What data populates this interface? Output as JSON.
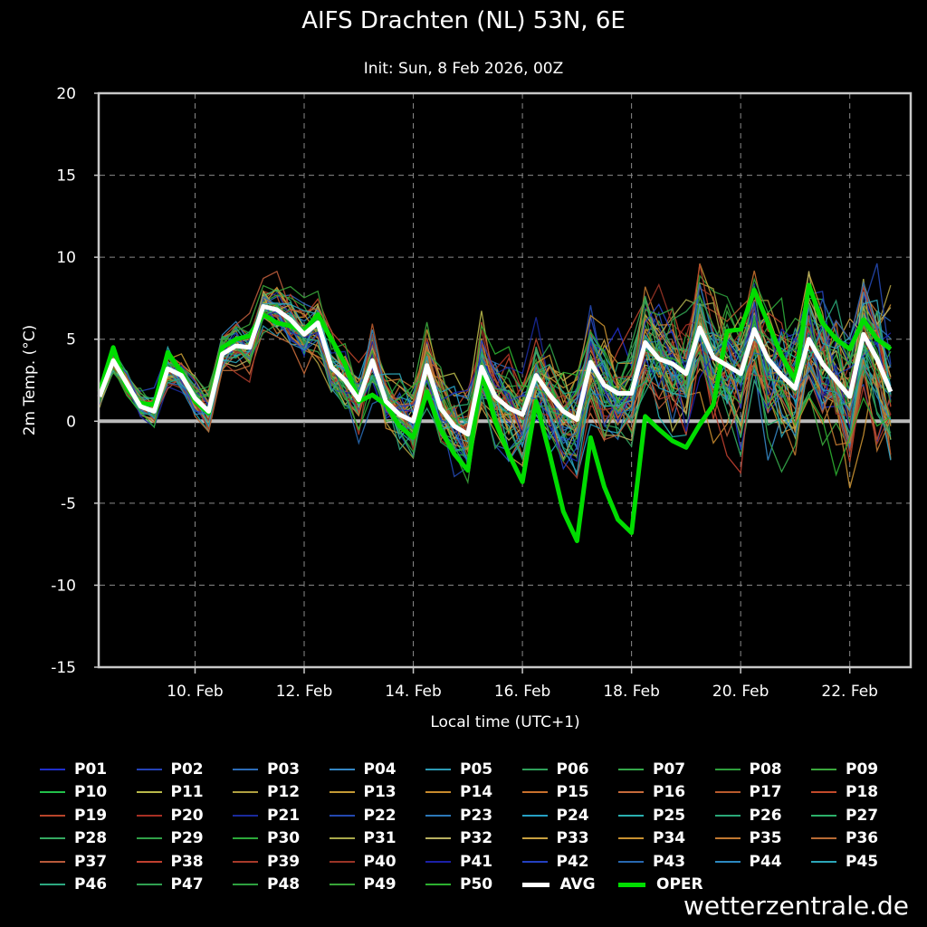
{
  "title": "AIFS Drachten (NL) 53N, 6E",
  "subtitle": "Init: Sun, 8 Feb 2026, 00Z",
  "credit": "wetterzentrale.de",
  "chart_data": {
    "type": "line",
    "xlabel": "Local time (UTC+1)",
    "ylabel": "2m Temp. (°C)",
    "ylim": [
      -15,
      20
    ],
    "yticks": [
      20,
      15,
      10,
      5,
      0,
      -5,
      -10,
      -15
    ],
    "xlim": [
      8.25,
      23.1
    ],
    "xticks": [
      {
        "day": 10,
        "label": "10. Feb"
      },
      {
        "day": 12,
        "label": "12. Feb"
      },
      {
        "day": 14,
        "label": "14. Feb"
      },
      {
        "day": 16,
        "label": "16. Feb"
      },
      {
        "day": 18,
        "label": "18. Feb"
      },
      {
        "day": 20,
        "label": "20. Feb"
      },
      {
        "day": 22,
        "label": "22. Feb"
      }
    ],
    "grid": true,
    "legend_placement": "bottom",
    "zero_line_color": "#bbbbbb",
    "x_start_day": 8.25,
    "x_step_days": 0.25,
    "avg": {
      "name": "AVG",
      "color": "#ffffff",
      "values": [
        1.5,
        3.7,
        2.3,
        0.9,
        0.6,
        3.2,
        2.8,
        1.4,
        0.6,
        4.1,
        4.6,
        4.5,
        7.0,
        6.8,
        6.2,
        5.3,
        6.0,
        3.3,
        2.5,
        1.3,
        3.7,
        1.2,
        0.4,
        0.0,
        3.4,
        0.8,
        -0.3,
        -0.8,
        3.3,
        1.5,
        0.8,
        0.4,
        2.8,
        1.6,
        0.6,
        0.1,
        3.6,
        2.2,
        1.7,
        1.7,
        4.8,
        3.8,
        3.5,
        2.9,
        5.7,
        3.9,
        3.4,
        2.9,
        5.6,
        3.8,
        2.8,
        2.0,
        5.0,
        3.5,
        2.5,
        1.5,
        5.3,
        3.8,
        1.8
      ]
    },
    "oper": {
      "name": "OPER",
      "color": "#00dd00",
      "values": [
        1.8,
        4.5,
        2.0,
        1.1,
        1.0,
        4.2,
        3.0,
        1.2,
        0.5,
        4.5,
        5.0,
        5.2,
        6.5,
        6.0,
        5.8,
        5.5,
        6.5,
        5.0,
        3.5,
        1.2,
        1.6,
        1.0,
        -0.3,
        -1.0,
        1.8,
        -0.5,
        -2.0,
        -3.0,
        3.0,
        0.0,
        -2.0,
        -3.7,
        1.2,
        -2.0,
        -5.5,
        -7.3,
        -1.0,
        -4.0,
        -6.0,
        -6.8,
        0.3,
        -0.5,
        -1.2,
        -1.6,
        -0.2,
        1.0,
        5.5,
        5.6,
        8.0,
        6.0,
        4.0,
        2.5,
        8.3,
        6.0,
        5.0,
        4.4,
        6.2,
        5.0,
        4.4
      ]
    },
    "ensemble": {
      "count": 50,
      "name_prefix": "P",
      "spread_min": -11,
      "spread_max": 14.6
    },
    "legend": [
      {
        "label": "P01",
        "color": "#1f2ecc"
      },
      {
        "label": "P02",
        "color": "#2442b8"
      },
      {
        "label": "P03",
        "color": "#2c6cb8"
      },
      {
        "label": "P04",
        "color": "#3486c4"
      },
      {
        "label": "P05",
        "color": "#2c9ab4"
      },
      {
        "label": "P06",
        "color": "#2fa05a"
      },
      {
        "label": "P07",
        "color": "#34a84a"
      },
      {
        "label": "P08",
        "color": "#2e9f3c"
      },
      {
        "label": "P09",
        "color": "#3aa83c"
      },
      {
        "label": "P10",
        "color": "#22c04a"
      },
      {
        "label": "P11",
        "color": "#b8b84a"
      },
      {
        "label": "P12",
        "color": "#b0a040"
      },
      {
        "label": "P13",
        "color": "#c49a34"
      },
      {
        "label": "P14",
        "color": "#c88a2c"
      },
      {
        "label": "P15",
        "color": "#c8702c"
      },
      {
        "label": "P16",
        "color": "#c66a3a"
      },
      {
        "label": "P17",
        "color": "#b85a2c"
      },
      {
        "label": "P18",
        "color": "#c24a2a"
      },
      {
        "label": "P19",
        "color": "#b8442a"
      },
      {
        "label": "P20",
        "color": "#a83024"
      },
      {
        "label": "P21",
        "color": "#1a2a9c"
      },
      {
        "label": "P22",
        "color": "#2448b0"
      },
      {
        "label": "P23",
        "color": "#2c78b8"
      },
      {
        "label": "P24",
        "color": "#26a0c4"
      },
      {
        "label": "P25",
        "color": "#2ab0b0"
      },
      {
        "label": "P26",
        "color": "#2aa878"
      },
      {
        "label": "P27",
        "color": "#2cb06a"
      },
      {
        "label": "P28",
        "color": "#34a860"
      },
      {
        "label": "P29",
        "color": "#30a048"
      },
      {
        "label": "P30",
        "color": "#2ca83a"
      },
      {
        "label": "P31",
        "color": "#a8a84a"
      },
      {
        "label": "P32",
        "color": "#b8b060"
      },
      {
        "label": "P33",
        "color": "#c8a040"
      },
      {
        "label": "P34",
        "color": "#c89030"
      },
      {
        "label": "P35",
        "color": "#c07830"
      },
      {
        "label": "P36",
        "color": "#b86a34"
      },
      {
        "label": "P37",
        "color": "#b85a3a"
      },
      {
        "label": "P38",
        "color": "#c04030"
      },
      {
        "label": "P39",
        "color": "#a83a2a"
      },
      {
        "label": "P40",
        "color": "#9a3426"
      },
      {
        "label": "P41",
        "color": "#1c20a8"
      },
      {
        "label": "P42",
        "color": "#2440c0"
      },
      {
        "label": "P43",
        "color": "#2868b0"
      },
      {
        "label": "P44",
        "color": "#2c88c0"
      },
      {
        "label": "P45",
        "color": "#2ca6b8"
      },
      {
        "label": "P46",
        "color": "#2ca880"
      },
      {
        "label": "P47",
        "color": "#30a050"
      },
      {
        "label": "P48",
        "color": "#2ea040"
      },
      {
        "label": "P49",
        "color": "#38a438"
      },
      {
        "label": "P50",
        "color": "#2cb030"
      },
      {
        "label": "AVG",
        "color": "#ffffff",
        "thick": true
      },
      {
        "label": "OPER",
        "color": "#00dd00",
        "thick": true
      }
    ]
  }
}
